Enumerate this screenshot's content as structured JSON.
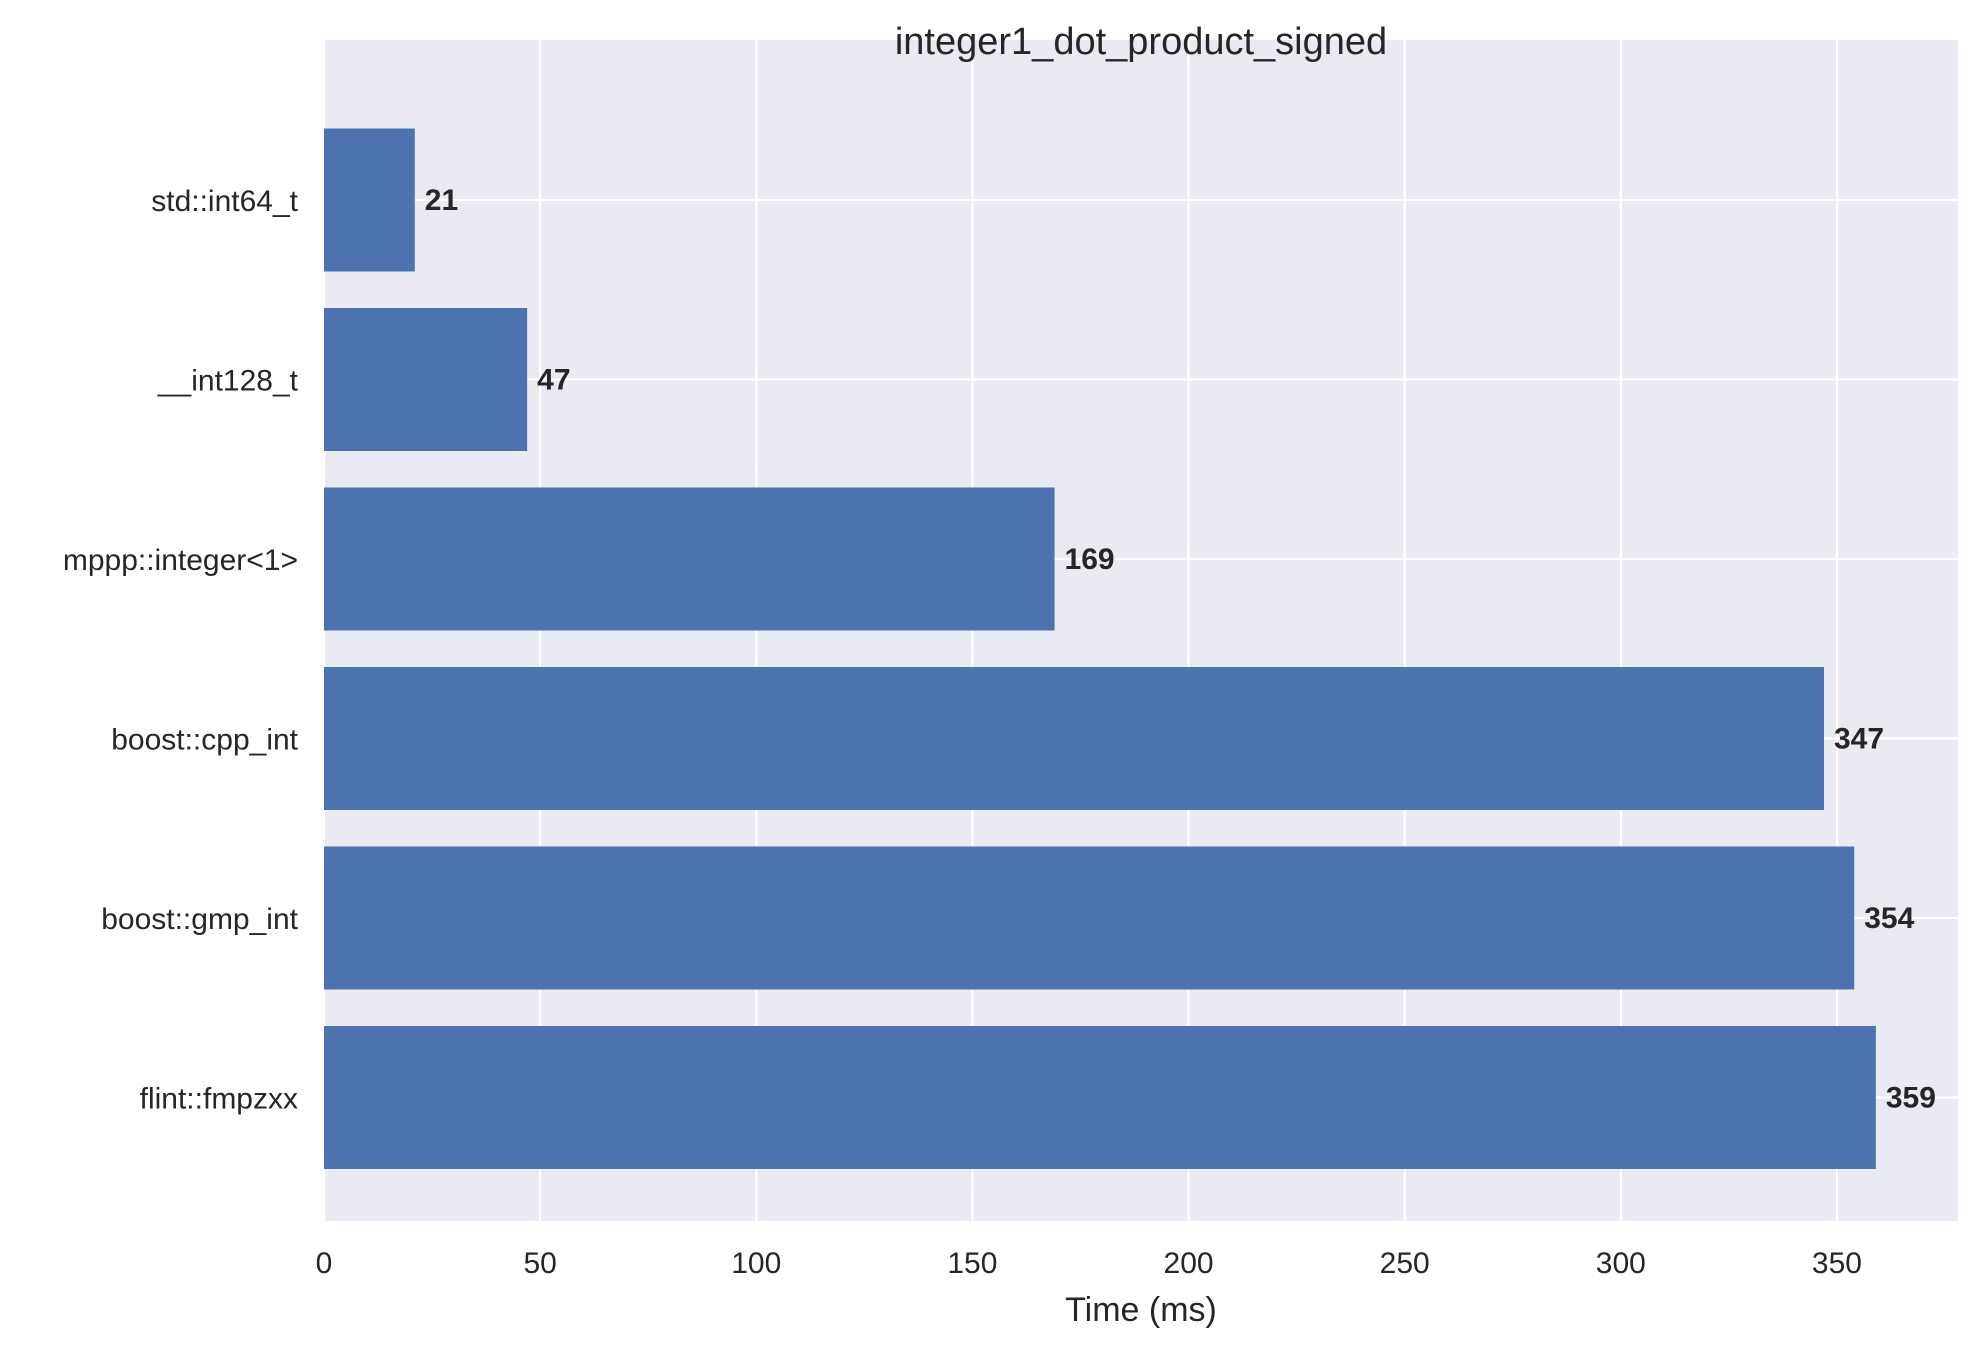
{
  "chart_data": {
    "type": "bar",
    "orientation": "horizontal",
    "title": "integer1_dot_product_signed",
    "xlabel": "Time (ms)",
    "ylabel": "",
    "categories": [
      "std::int64_t",
      "__int128_t",
      "mppp::integer<1>",
      "boost::cpp_int",
      "boost::gmp_int",
      "flint::fmpzxx"
    ],
    "values": [
      21,
      47,
      169,
      347,
      354,
      359
    ],
    "value_labels": [
      "21",
      "47",
      "169",
      "347",
      "354",
      "359"
    ],
    "xlim": [
      0,
      378
    ],
    "xticks": [
      0,
      50,
      100,
      150,
      200,
      250,
      300,
      350
    ],
    "xtick_labels": [
      "0",
      "50",
      "100",
      "150",
      "200",
      "250",
      "300",
      "350"
    ],
    "grid": true,
    "colors": {
      "bar": "#4c72b0",
      "plot_background": "#eaeaf2",
      "grid": "#ffffff",
      "text": "#262626"
    }
  }
}
